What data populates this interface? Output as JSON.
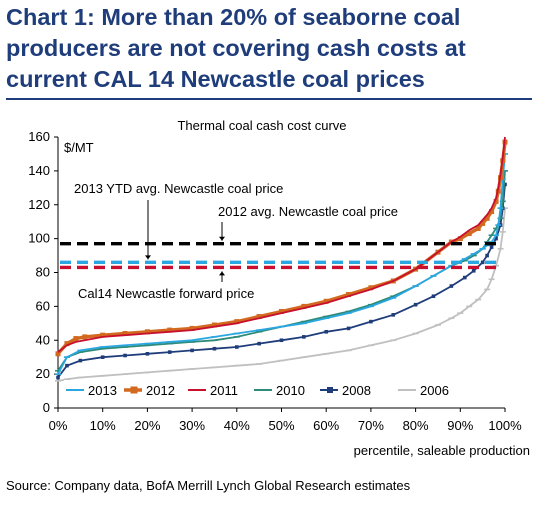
{
  "header": {
    "title_lines": [
      "Chart 1: More than 20% of seaborne coal",
      "producers are not covering cash costs at",
      "current CAL 14 Newcastle coal prices"
    ]
  },
  "source": "Source: Company data, BofA Merrill Lynch Global Research estimates",
  "chart_data": {
    "type": "line",
    "title": "Thermal coal cash cost curve",
    "ylabel": "$/MT",
    "xlabel": "percentile, saleable production",
    "xlim": [
      0,
      100
    ],
    "ylim": [
      0,
      160
    ],
    "x_ticks": [
      0,
      10,
      20,
      30,
      40,
      50,
      60,
      70,
      80,
      90,
      100
    ],
    "x_tick_labels": [
      "0%",
      "10%",
      "20%",
      "30%",
      "40%",
      "50%",
      "60%",
      "70%",
      "80%",
      "90%",
      "100%"
    ],
    "y_ticks": [
      0,
      20,
      40,
      60,
      80,
      100,
      120,
      140,
      160
    ],
    "y_tick_labels": [
      "0",
      "20",
      "40",
      "60",
      "80",
      "100",
      "120",
      "140",
      "160"
    ],
    "grid": false,
    "legend_position": "bottom",
    "series": [
      {
        "name": "2013",
        "color": "#2aa7e0",
        "marker": "tick",
        "x": [
          0,
          2,
          5,
          10,
          15,
          20,
          25,
          30,
          35,
          40,
          45,
          50,
          55,
          60,
          65,
          70,
          75,
          80,
          84,
          88,
          91,
          93,
          95,
          96,
          97,
          98,
          98.5,
          99,
          99.5,
          100
        ],
        "y": [
          20,
          30,
          34,
          36,
          37,
          38,
          39,
          40,
          42,
          44,
          46,
          48,
          50,
          53,
          56,
          60,
          65,
          72,
          78,
          84,
          88,
          91,
          94,
          96,
          98,
          102,
          108,
          118,
          135,
          150
        ]
      },
      {
        "name": "2012",
        "color": "#d2691e",
        "marker": "square",
        "x": [
          0,
          2,
          4,
          6,
          10,
          15,
          20,
          25,
          30,
          35,
          40,
          45,
          50,
          55,
          60,
          65,
          70,
          75,
          80,
          85,
          88,
          90,
          92,
          94,
          95,
          96,
          97,
          98,
          98.5,
          99,
          99.5,
          100
        ],
        "y": [
          32,
          38,
          41,
          42,
          43,
          44,
          45,
          46,
          47,
          49,
          51,
          54,
          57,
          60,
          63,
          67,
          71,
          75,
          82,
          92,
          98,
          100,
          103,
          106,
          109,
          112,
          116,
          122,
          128,
          136,
          146,
          157
        ]
      },
      {
        "name": "2011",
        "color": "#c8102e",
        "marker": "none",
        "x": [
          0,
          2,
          4,
          6,
          10,
          15,
          20,
          25,
          30,
          35,
          40,
          45,
          50,
          55,
          60,
          65,
          70,
          75,
          80,
          85,
          88,
          90,
          92,
          94,
          95,
          96,
          97,
          98,
          98.5,
          99,
          99.5,
          100
        ],
        "y": [
          33,
          37,
          39,
          40,
          42,
          43,
          44,
          45,
          46,
          48,
          50,
          53,
          56,
          59,
          62,
          66,
          70,
          75,
          82,
          92,
          98,
          101,
          105,
          108,
          111,
          114,
          118,
          124,
          130,
          138,
          148,
          160
        ]
      },
      {
        "name": "2010",
        "color": "#2e8b7a",
        "marker": "dash",
        "x": [
          0,
          2,
          5,
          10,
          15,
          20,
          25,
          30,
          35,
          40,
          45,
          50,
          55,
          60,
          65,
          70,
          75,
          80,
          84,
          88,
          91,
          93,
          95,
          96,
          97,
          98,
          99,
          99.5,
          100
        ],
        "y": [
          22,
          30,
          33,
          35,
          36,
          37,
          38,
          39,
          40,
          42,
          45,
          48,
          51,
          54,
          57,
          61,
          66,
          72,
          78,
          84,
          87,
          90,
          94,
          98,
          102,
          106,
          112,
          122,
          140
        ]
      },
      {
        "name": "2008",
        "color": "#1f3d7a",
        "marker": "square-small",
        "x": [
          0,
          2,
          5,
          10,
          15,
          20,
          25,
          30,
          35,
          40,
          45,
          50,
          55,
          60,
          65,
          70,
          75,
          80,
          84,
          88,
          91,
          93,
          95,
          96,
          97,
          98,
          99,
          99.5,
          100
        ],
        "y": [
          18,
          25,
          28,
          30,
          31,
          32,
          33,
          34,
          35,
          36,
          38,
          40,
          42,
          45,
          47,
          51,
          55,
          61,
          66,
          72,
          77,
          81,
          86,
          90,
          95,
          100,
          108,
          118,
          132
        ]
      },
      {
        "name": "2006",
        "color": "#c0c0c0",
        "marker": "dash",
        "x": [
          0,
          2,
          5,
          10,
          15,
          20,
          25,
          30,
          35,
          40,
          45,
          50,
          55,
          60,
          65,
          70,
          75,
          80,
          85,
          88,
          90,
          92,
          94,
          96,
          97,
          98,
          99,
          99.5,
          100
        ],
        "y": [
          16,
          17,
          18,
          19,
          20,
          21,
          22,
          23,
          24,
          25,
          26,
          28,
          30,
          32,
          34,
          37,
          40,
          44,
          49,
          53,
          56,
          60,
          64,
          70,
          76,
          84,
          94,
          104,
          118
        ]
      }
    ],
    "reference_lines": [
      {
        "name": "2013 YTD avg. Newcastle coal price",
        "value": 86,
        "color": "#2aa7e0"
      },
      {
        "name": "2012 avg. Newcastle coal price",
        "value": 97,
        "color": "#000000"
      },
      {
        "name": "Cal14 Newcastle forward price",
        "value": 83,
        "color": "#c8102e"
      }
    ],
    "annotations": [
      "2013 YTD avg. Newcastle coal price",
      "2012 avg. Newcastle coal price",
      "Cal14 Newcastle forward price"
    ]
  }
}
